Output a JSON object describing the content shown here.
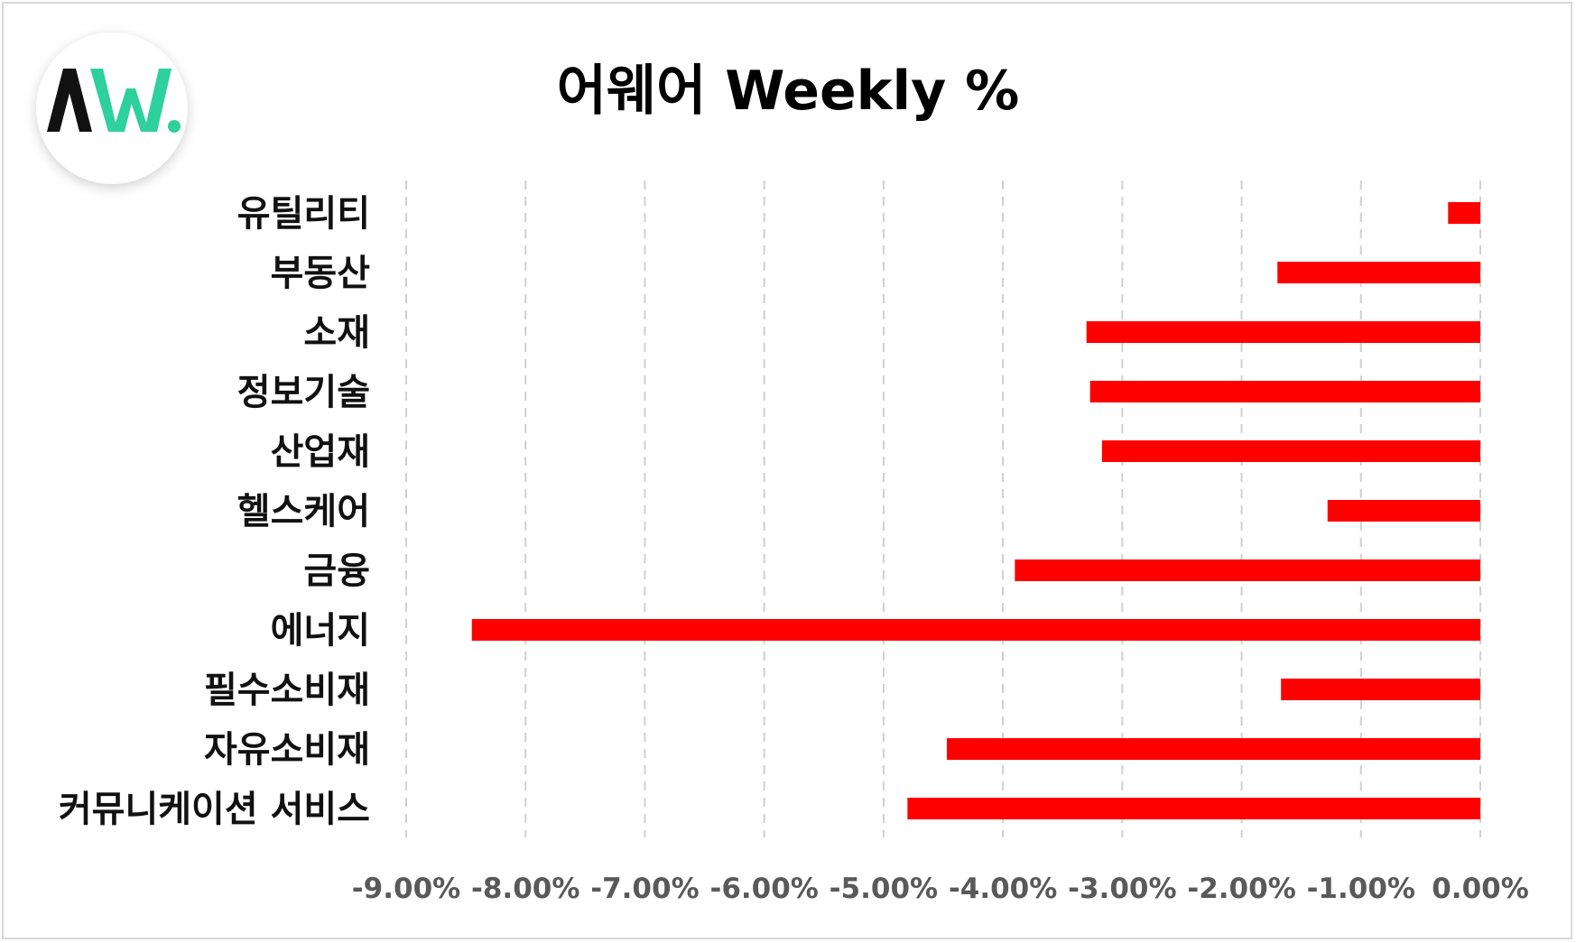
{
  "colors": {
    "bar": "#ff0000",
    "grid": "#d0d0d0",
    "tick_text": "#595959",
    "logo_dark": "#111111",
    "logo_green": "#2ed09b"
  },
  "logo": {
    "icon": "aw-logo-icon"
  },
  "chart_data": {
    "type": "bar",
    "orientation": "horizontal",
    "title": "어웨어 Weekly %",
    "categories": [
      "유틸리티",
      "부동산",
      "소재",
      "정보기술",
      "산업재",
      "헬스케어",
      "금융",
      "에너지",
      "필수소비재",
      "자유소비재",
      "커뮤니케이션 서비스"
    ],
    "values": [
      -0.27,
      -1.7,
      -3.3,
      -3.27,
      -3.17,
      -1.28,
      -3.9,
      -8.45,
      -1.67,
      -4.47,
      -4.8
    ],
    "xlim": [
      -9,
      0
    ],
    "xticks": [
      -9,
      -8,
      -7,
      -6,
      -5,
      -4,
      -3,
      -2,
      -1,
      0
    ],
    "xtick_labels": [
      "-9.00%",
      "-8.00%",
      "-7.00%",
      "-6.00%",
      "-5.00%",
      "-4.00%",
      "-3.00%",
      "-2.00%",
      "-1.00%",
      "0.00%"
    ],
    "xlabel": "",
    "ylabel": "",
    "grid": "vertical-dashed",
    "legend": "none"
  }
}
